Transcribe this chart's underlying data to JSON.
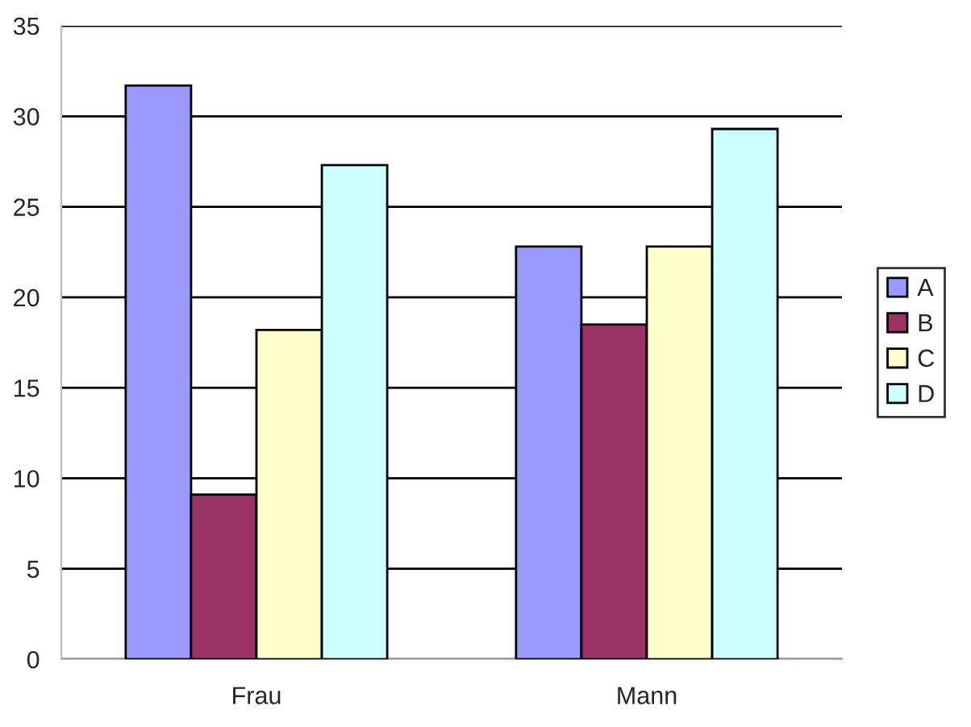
{
  "chart_data": {
    "type": "bar",
    "categories": [
      "Frau",
      "Mann"
    ],
    "series": [
      {
        "name": "A",
        "color": "#9999ff",
        "values": [
          31.7,
          22.8
        ]
      },
      {
        "name": "B",
        "color": "#993366",
        "values": [
          9.1,
          18.5
        ]
      },
      {
        "name": "C",
        "color": "#ffffcc",
        "values": [
          18.2,
          22.8
        ]
      },
      {
        "name": "D",
        "color": "#ccffff",
        "values": [
          27.3,
          29.3
        ]
      }
    ],
    "ylim": [
      0,
      35
    ],
    "yticks": [
      0,
      5,
      10,
      15,
      20,
      25,
      30,
      35
    ],
    "grid": "y",
    "legend": "right"
  }
}
